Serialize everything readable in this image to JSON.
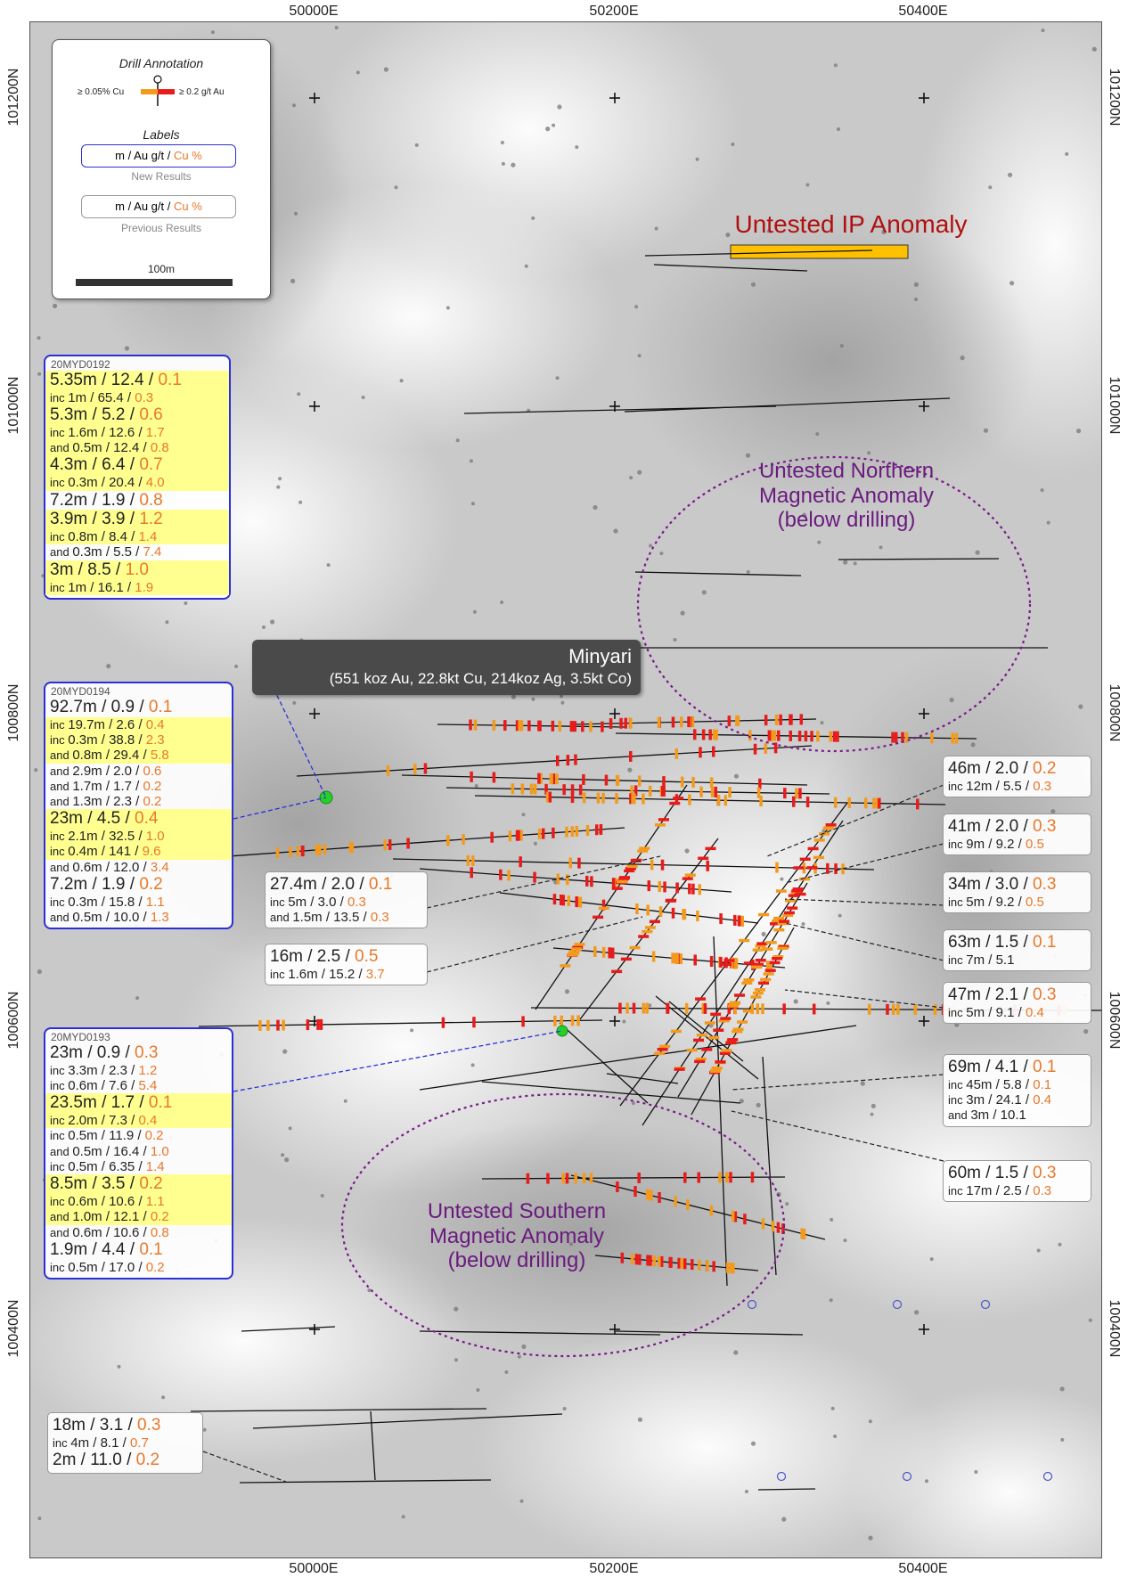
{
  "axes": {
    "top": [
      {
        "label": "50000E",
        "x": 352
      },
      {
        "label": "50200E",
        "x": 689
      },
      {
        "label": "50400E",
        "x": 1036
      }
    ],
    "bottom": [
      {
        "label": "50000E",
        "x": 352
      },
      {
        "label": "50200E",
        "x": 689
      },
      {
        "label": "50400E",
        "x": 1036
      }
    ],
    "left": [
      {
        "label": "101200N",
        "y": 109
      },
      {
        "label": "101000N",
        "y": 455
      },
      {
        "label": "100800N",
        "y": 800
      },
      {
        "label": "100600N",
        "y": 1145
      },
      {
        "label": "100400N",
        "y": 1491
      }
    ],
    "right": [
      {
        "label": "101200N",
        "y": 109
      },
      {
        "label": "101000N",
        "y": 455
      },
      {
        "label": "100800N",
        "y": 800
      },
      {
        "label": "100600N",
        "y": 1145
      },
      {
        "label": "100400N",
        "y": 1491
      }
    ]
  },
  "legend": {
    "title": "Drill Annotation",
    "cu_threshold": "≥ 0.05% Cu",
    "au_threshold": "≥ 0.2 g/t Au",
    "labels_title": "Labels",
    "chip_m": "m",
    "chip_au": "Au g/t",
    "chip_cu": "Cu %",
    "sep": "/",
    "new_caption": "New Results",
    "prev_caption": "Previous Results",
    "scale": "100m",
    "colors": {
      "cu": "#f39a1c",
      "au": "#e81b1b",
      "new": "#2b2fd6",
      "prev": "#999999"
    }
  },
  "map_labels": {
    "ip": "Untested IP Anomaly",
    "northern": [
      "Untested Northern",
      "Magnetic Anomaly",
      "(below drilling)"
    ],
    "southern": [
      "Untested Southern",
      "Magnetic Anomaly",
      "(below drilling)"
    ],
    "deposit_name": "Minyari",
    "deposit_resource": "(551 koz Au, 22.8kt Cu, 214koz Ag, 3.5kt Co)"
  },
  "callouts": [
    {
      "id": "20MYD0192",
      "kind": "new",
      "lines": [
        {
          "m": "5.35m",
          "au": "12.4",
          "cu": "0.1",
          "size": "big",
          "hl": true
        },
        {
          "pre": "inc",
          "m": "1m",
          "au": "65.4",
          "cu": "0.3",
          "size": "sm",
          "hl": true
        },
        {
          "m": "5.3m",
          "au": "5.2",
          "cu": "0.6",
          "size": "big",
          "hl": true
        },
        {
          "pre": "inc",
          "m": "1.6m",
          "au": "12.6",
          "cu": "1.7",
          "size": "sm",
          "hl": true
        },
        {
          "pre": "and",
          "m": "0.5m",
          "au": "12.4",
          "cu": "0.8",
          "size": "sm",
          "hl": true
        },
        {
          "m": "4.3m",
          "au": "6.4",
          "cu": "0.7",
          "size": "big",
          "hl": true
        },
        {
          "pre": "inc",
          "m": "0.3m",
          "au": "20.4",
          "cu": "4.0",
          "size": "sm",
          "hl": true
        },
        {
          "m": "7.2m",
          "au": "1.9",
          "cu": "0.8",
          "size": "big",
          "hl": false
        },
        {
          "m": "3.9m",
          "au": "3.9",
          "cu": "1.2",
          "size": "big",
          "hl": true
        },
        {
          "pre": "inc",
          "m": "0.8m",
          "au": "8.4",
          "cu": "1.4",
          "size": "sm",
          "hl": true
        },
        {
          "pre": "and",
          "m": "0.3m",
          "au": "5.5",
          "cu": "7.4",
          "size": "sm",
          "hl": false
        },
        {
          "m": "3m",
          "au": "8.5",
          "cu": "1.0",
          "size": "big",
          "hl": true
        },
        {
          "pre": "inc",
          "m": "1m",
          "au": "16.1",
          "cu": "1.9",
          "size": "sm",
          "hl": true
        }
      ]
    },
    {
      "id": "20MYD0194",
      "kind": "new",
      "lines": [
        {
          "m": "92.7m",
          "au": "0.9",
          "cu": "0.1",
          "size": "big",
          "hl": false
        },
        {
          "pre": "inc",
          "m": "19.7m",
          "au": "2.6",
          "cu": "0.4",
          "size": "sm",
          "hl": true
        },
        {
          "pre": "inc",
          "m": "0.3m",
          "au": "38.8",
          "cu": "2.3",
          "size": "sm",
          "hl": true
        },
        {
          "pre": "and",
          "m": "0.8m",
          "au": "29.4",
          "cu": "5.8",
          "size": "sm",
          "hl": true
        },
        {
          "pre": "and",
          "m": "2.9m",
          "au": "2.0",
          "cu": "0.6",
          "size": "sm",
          "hl": false
        },
        {
          "pre": "and",
          "m": "1.7m",
          "au": "1.7",
          "cu": "0.2",
          "size": "sm",
          "hl": false
        },
        {
          "pre": "and",
          "m": "1.3m",
          "au": "2.3",
          "cu": "0.2",
          "size": "sm",
          "hl": false
        },
        {
          "m": "23m",
          "au": "4.5",
          "cu": "0.4",
          "size": "big",
          "hl": true
        },
        {
          "pre": "inc",
          "m": "2.1m",
          "au": "32.5",
          "cu": "1.0",
          "size": "sm",
          "hl": true
        },
        {
          "pre": "inc",
          "m": "0.4m",
          "au": "141",
          "cu": "9.6",
          "size": "sm",
          "hl": true
        },
        {
          "pre": "and",
          "m": "0.6m",
          "au": "12.0",
          "cu": "3.4",
          "size": "sm",
          "hl": false
        },
        {
          "m": "7.2m",
          "au": "1.9",
          "cu": "0.2",
          "size": "big",
          "hl": false
        },
        {
          "pre": "inc",
          "m": "0.3m",
          "au": "15.8",
          "cu": "1.1",
          "size": "sm",
          "hl": false
        },
        {
          "pre": "and",
          "m": "0.5m",
          "au": "10.0",
          "cu": "1.3",
          "size": "sm",
          "hl": false
        }
      ]
    },
    {
      "id": "20MYD0193",
      "kind": "new",
      "lines": [
        {
          "m": "23m",
          "au": "0.9",
          "cu": "0.3",
          "size": "big",
          "hl": false
        },
        {
          "pre": "inc",
          "m": "3.3m",
          "au": "2.3",
          "cu": "1.2",
          "size": "sm",
          "hl": false
        },
        {
          "pre": "inc",
          "m": "0.6m",
          "au": "7.6",
          "cu": "5.4",
          "size": "sm",
          "hl": false
        },
        {
          "m": "23.5m",
          "au": "1.7",
          "cu": "0.1",
          "size": "big",
          "hl": true
        },
        {
          "pre": "inc",
          "m": "2.0m",
          "au": "7.3",
          "cu": "0.4",
          "size": "sm",
          "hl": true
        },
        {
          "pre": "inc",
          "m": "0.5m",
          "au": "11.9",
          "cu": "0.2",
          "size": "sm",
          "hl": false
        },
        {
          "pre": "and",
          "m": "0.5m",
          "au": "16.4",
          "cu": "1.0",
          "size": "sm",
          "hl": false
        },
        {
          "pre": "inc",
          "m": "0.5m",
          "au": "6.35",
          "cu": "1.4",
          "size": "sm",
          "hl": false
        },
        {
          "m": "8.5m",
          "au": "3.5",
          "cu": "0.2",
          "size": "big",
          "hl": true
        },
        {
          "pre": "inc",
          "m": "0.6m",
          "au": "10.6",
          "cu": "1.1",
          "size": "sm",
          "hl": true
        },
        {
          "pre": "and",
          "m": "1.0m",
          "au": "12.1",
          "cu": "0.2",
          "size": "sm",
          "hl": true
        },
        {
          "pre": "and",
          "m": "0.6m",
          "au": "10.6",
          "cu": "0.8",
          "size": "sm",
          "hl": false
        },
        {
          "m": "1.9m",
          "au": "4.4",
          "cu": "0.1",
          "size": "big",
          "hl": false
        },
        {
          "pre": "inc",
          "m": "0.5m",
          "au": "17.0",
          "cu": "0.2",
          "size": "sm",
          "hl": false
        }
      ]
    },
    {
      "id": "",
      "kind": "prev",
      "lines": [
        {
          "m": "27.4m",
          "au": "2.0",
          "cu": "0.1",
          "size": "big"
        },
        {
          "pre": "inc",
          "m": "5m",
          "au": "3.0",
          "cu": "0.3",
          "size": "sm"
        },
        {
          "pre": "and",
          "m": "1.5m",
          "au": "13.5",
          "cu": "0.3",
          "size": "sm"
        }
      ]
    },
    {
      "id": "",
      "kind": "prev",
      "lines": [
        {
          "m": "16m",
          "au": "2.5",
          "cu": "0.5",
          "size": "big"
        },
        {
          "pre": "inc",
          "m": "1.6m",
          "au": "15.2",
          "cu": "3.7",
          "size": "sm"
        }
      ]
    },
    {
      "id": "",
      "kind": "prev",
      "lines": [
        {
          "m": "46m",
          "au": "2.0",
          "cu": "0.2",
          "size": "big"
        },
        {
          "pre": "inc",
          "m": "12m",
          "au": "5.5",
          "cu": "0.3",
          "size": "sm"
        }
      ]
    },
    {
      "id": "",
      "kind": "prev",
      "lines": [
        {
          "m": "41m",
          "au": "2.0",
          "cu": "0.3",
          "size": "big"
        },
        {
          "pre": "inc",
          "m": "9m",
          "au": "9.2",
          "cu": "0.5",
          "size": "sm"
        }
      ]
    },
    {
      "id": "",
      "kind": "prev",
      "lines": [
        {
          "m": "34m",
          "au": "3.0",
          "cu": "0.3",
          "size": "big"
        },
        {
          "pre": "inc",
          "m": "5m",
          "au": "9.2",
          "cu": "0.5",
          "size": "sm"
        }
      ]
    },
    {
      "id": "",
      "kind": "prev",
      "lines": [
        {
          "m": "63m",
          "au": "1.5",
          "cu": "0.1",
          "size": "big"
        },
        {
          "pre": "inc",
          "m": "7m",
          "au": "5.1",
          "cu": "",
          "size": "sm"
        }
      ]
    },
    {
      "id": "",
      "kind": "prev",
      "lines": [
        {
          "m": "47m",
          "au": "2.1",
          "cu": "0.3",
          "size": "big"
        },
        {
          "pre": "inc",
          "m": "5m",
          "au": "9.1",
          "cu": "0.4",
          "size": "sm"
        }
      ]
    },
    {
      "id": "",
      "kind": "prev",
      "lines": [
        {
          "m": "69m",
          "au": "4.1",
          "cu": "0.1",
          "size": "big"
        },
        {
          "pre": "inc",
          "m": "45m",
          "au": "5.8",
          "cu": "0.1",
          "size": "sm"
        },
        {
          "pre": "inc",
          "m": "3m",
          "au": "24.1",
          "cu": "0.4",
          "size": "sm"
        },
        {
          "pre": "and",
          "m": "3m",
          "au": "10.1",
          "cu": "",
          "size": "sm"
        }
      ]
    },
    {
      "id": "",
      "kind": "prev",
      "lines": [
        {
          "m": "60m",
          "au": "1.5",
          "cu": "0.3",
          "size": "big"
        },
        {
          "pre": "inc",
          "m": "17m",
          "au": "2.5",
          "cu": "0.3",
          "size": "sm"
        }
      ]
    },
    {
      "id": "",
      "kind": "prev",
      "lines": [
        {
          "m": "18m",
          "au": "3.1",
          "cu": "0.3",
          "size": "big"
        },
        {
          "pre": "inc",
          "m": "4m",
          "au": "8.1",
          "cu": "0.7",
          "size": "sm"
        },
        {
          "m": "2m",
          "au": "11.0",
          "cu": "0.2",
          "size": "big"
        }
      ]
    }
  ]
}
